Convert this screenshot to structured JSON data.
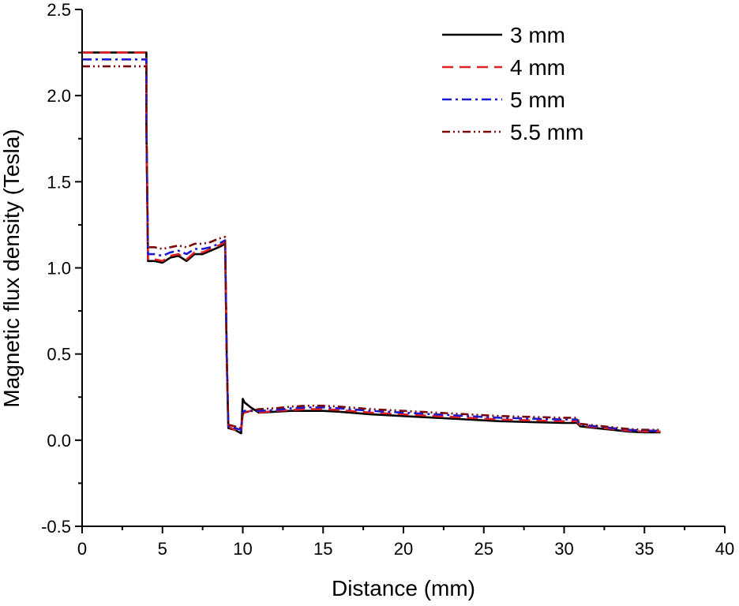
{
  "chart_data": {
    "type": "line",
    "xlabel": "Distance (mm)",
    "ylabel": "Magnetic flux density (Tesla)",
    "xlim": [
      0,
      40
    ],
    "ylim": [
      -0.5,
      2.5
    ],
    "x_ticks": [
      "0",
      "5",
      "10",
      "15",
      "20",
      "25",
      "30",
      "35",
      "40"
    ],
    "y_ticks": [
      "-0.5",
      "0.0",
      "0.5",
      "1.0",
      "1.5",
      "2.0",
      "2.5"
    ],
    "grid": false,
    "legend_position": "top-right",
    "series": [
      {
        "name": "3 mm",
        "color": "#000000",
        "dash": "solid",
        "x": [
          0,
          4.0,
          4.0,
          4.1,
          4.5,
          5.0,
          5.5,
          6.0,
          6.5,
          7.0,
          7.5,
          8.0,
          8.5,
          8.9,
          9.0,
          9.1,
          9.5,
          9.9,
          10.0,
          10.1,
          10.5,
          11,
          12,
          13,
          14,
          15,
          16,
          18,
          20,
          22,
          24,
          26,
          28,
          30,
          30.8,
          31.0,
          32,
          33,
          34,
          35,
          36
        ],
        "y": [
          2.25,
          2.25,
          1.85,
          1.04,
          1.04,
          1.03,
          1.06,
          1.07,
          1.04,
          1.08,
          1.08,
          1.1,
          1.12,
          1.14,
          0.5,
          0.07,
          0.06,
          0.04,
          0.24,
          0.22,
          0.19,
          0.16,
          0.165,
          0.17,
          0.17,
          0.17,
          0.165,
          0.15,
          0.14,
          0.13,
          0.12,
          0.11,
          0.105,
          0.1,
          0.1,
          0.08,
          0.07,
          0.06,
          0.05,
          0.045,
          0.045
        ]
      },
      {
        "name": "4 mm",
        "color": "#e02020",
        "dash": "dashed",
        "x": [
          0,
          4.0,
          4.0,
          4.1,
          4.5,
          5.0,
          5.5,
          6.0,
          6.5,
          7.0,
          7.5,
          8.0,
          8.5,
          8.9,
          9.0,
          9.1,
          9.5,
          9.9,
          10.0,
          10.1,
          10.5,
          11,
          12,
          13,
          14,
          15,
          16,
          18,
          20,
          22,
          24,
          26,
          28,
          30,
          30.8,
          31.0,
          32,
          33,
          34,
          35,
          36
        ],
        "y": [
          2.25,
          2.25,
          1.85,
          1.05,
          1.05,
          1.04,
          1.07,
          1.08,
          1.05,
          1.09,
          1.09,
          1.11,
          1.13,
          1.15,
          0.5,
          0.08,
          0.06,
          0.05,
          0.16,
          0.16,
          0.17,
          0.16,
          0.17,
          0.175,
          0.18,
          0.18,
          0.175,
          0.16,
          0.15,
          0.14,
          0.13,
          0.12,
          0.115,
          0.11,
          0.11,
          0.085,
          0.075,
          0.065,
          0.055,
          0.05,
          0.05
        ]
      },
      {
        "name": "5 mm",
        "color": "#1a1ad6",
        "dash": "dash-dot",
        "x": [
          0,
          4.0,
          4.0,
          4.1,
          4.5,
          5.0,
          5.5,
          6.0,
          6.5,
          7.0,
          7.5,
          8.0,
          8.5,
          8.9,
          9.0,
          9.1,
          9.5,
          9.9,
          10.0,
          10.1,
          10.5,
          11,
          12,
          13,
          14,
          15,
          16,
          18,
          20,
          22,
          24,
          26,
          28,
          30,
          30.8,
          31.0,
          32,
          33,
          34,
          35,
          36
        ],
        "y": [
          2.21,
          2.21,
          1.84,
          1.08,
          1.08,
          1.07,
          1.09,
          1.1,
          1.08,
          1.11,
          1.11,
          1.12,
          1.14,
          1.16,
          0.5,
          0.08,
          0.07,
          0.06,
          0.16,
          0.17,
          0.17,
          0.17,
          0.175,
          0.185,
          0.19,
          0.19,
          0.185,
          0.17,
          0.16,
          0.15,
          0.14,
          0.13,
          0.125,
          0.12,
          0.12,
          0.09,
          0.08,
          0.07,
          0.06,
          0.055,
          0.055
        ]
      },
      {
        "name": "5.5 mm",
        "color": "#7a0a0a",
        "dash": "dash-dot-dot",
        "x": [
          0,
          4.0,
          4.0,
          4.1,
          4.5,
          5.0,
          5.5,
          6.0,
          6.5,
          7.0,
          7.5,
          8.0,
          8.5,
          8.9,
          9.0,
          9.1,
          9.5,
          9.9,
          10.0,
          10.1,
          10.5,
          11,
          12,
          13,
          14,
          15,
          16,
          18,
          20,
          22,
          24,
          26,
          28,
          30,
          30.8,
          31.0,
          32,
          33,
          34,
          35,
          36
        ],
        "y": [
          2.17,
          2.17,
          1.83,
          1.12,
          1.12,
          1.11,
          1.12,
          1.13,
          1.12,
          1.14,
          1.14,
          1.15,
          1.17,
          1.18,
          0.5,
          0.09,
          0.08,
          0.07,
          0.15,
          0.16,
          0.17,
          0.18,
          0.185,
          0.195,
          0.2,
          0.2,
          0.195,
          0.18,
          0.17,
          0.16,
          0.15,
          0.14,
          0.135,
          0.13,
          0.13,
          0.095,
          0.085,
          0.075,
          0.065,
          0.06,
          0.06
        ]
      }
    ]
  }
}
